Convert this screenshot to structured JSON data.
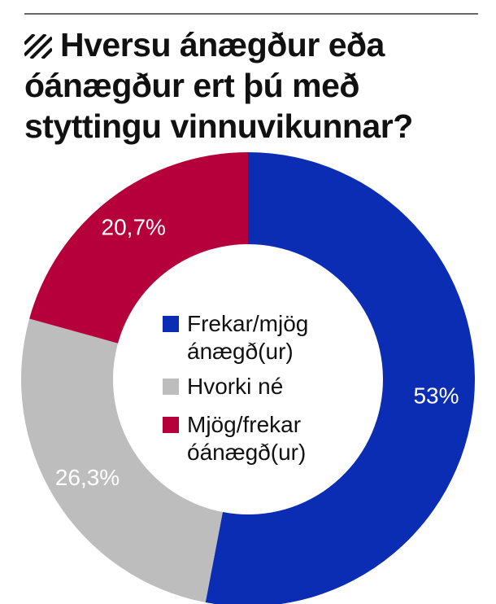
{
  "chart_data": {
    "type": "donut",
    "title": "Hversu ánægður eða óánægður ert þú með styttingu vinnuvikunnar?",
    "categories": [
      "Frekar/mjög ánægð(ur)",
      "Hvorki né",
      "Mjög/frekar óánægð(ur)"
    ],
    "values": [
      53,
      26.3,
      20.7
    ],
    "value_labels": [
      "53%",
      "26,3%",
      "20,7%"
    ],
    "colors": [
      "#0a2db4",
      "#bdbdbd",
      "#b5003c"
    ]
  }
}
